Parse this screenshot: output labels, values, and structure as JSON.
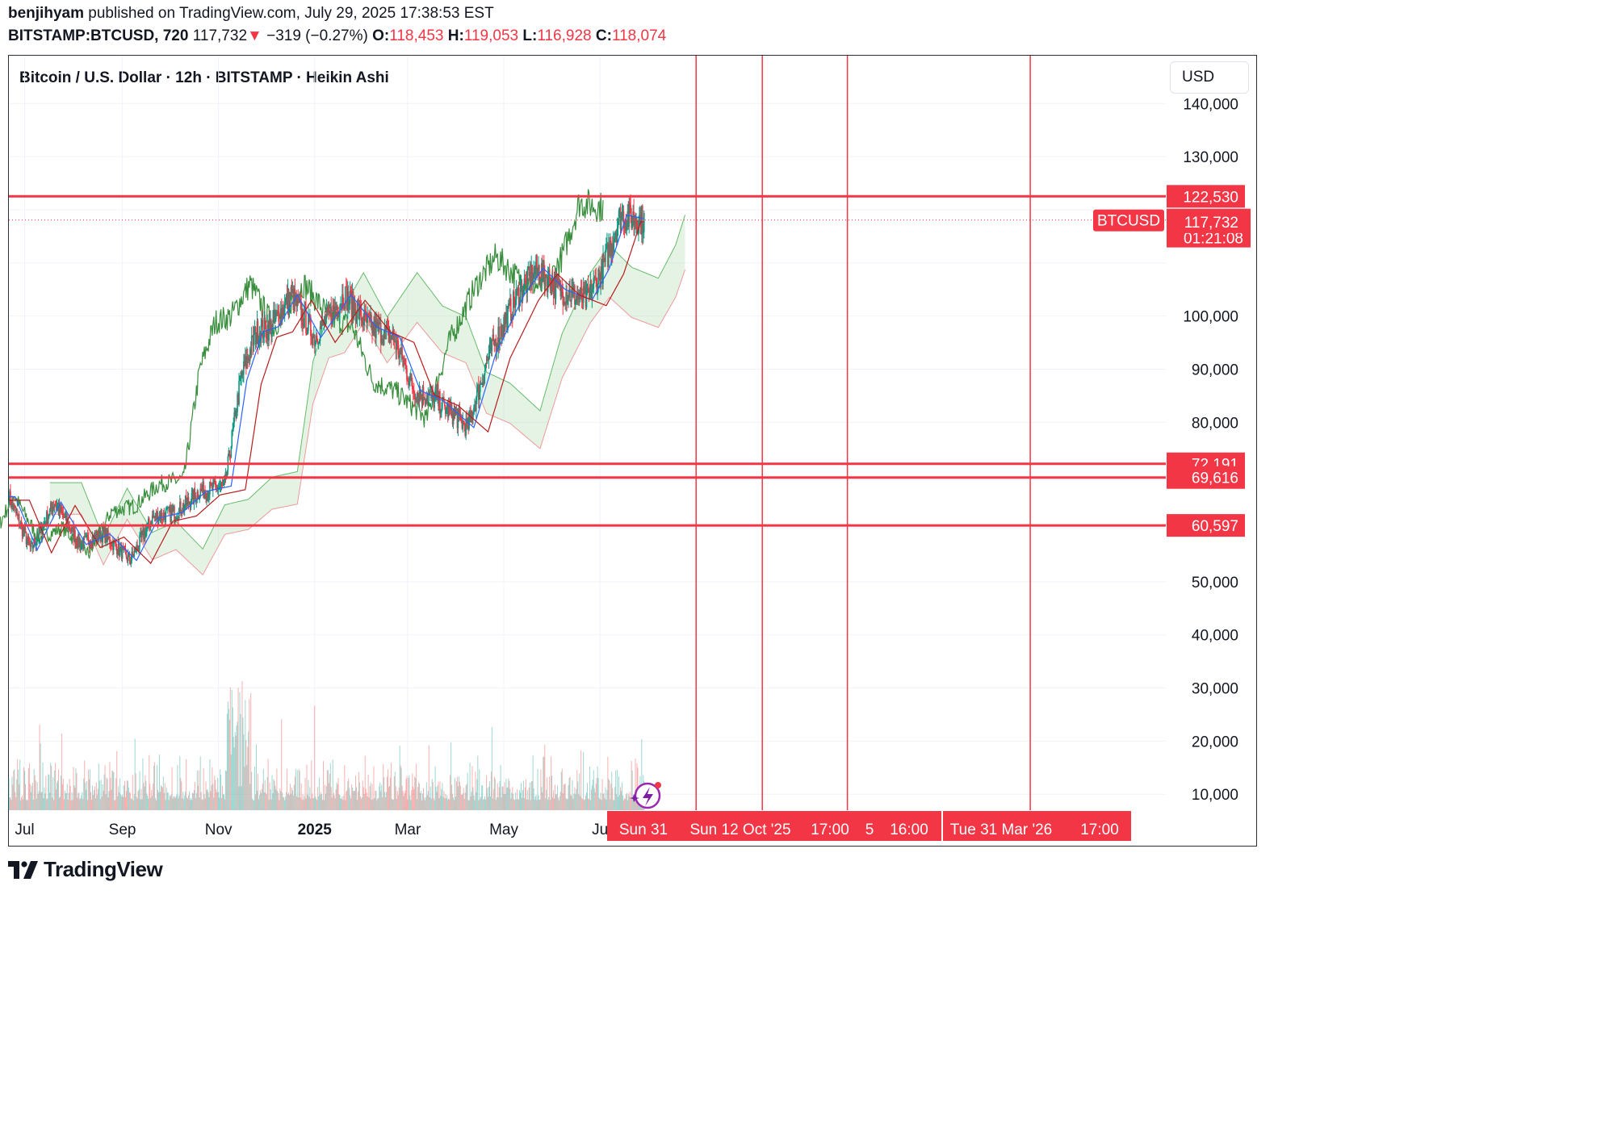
{
  "header": {
    "publisher": "benjihyam",
    "published_text": "published on TradingView.com, July 29, 2025 17:38:53 EST",
    "symbol": "BITSTAMP:BTCUSD, 720",
    "last": "117,732",
    "change": "−319 (−0.27%)",
    "o_label": "O:",
    "o": "118,453",
    "h_label": "H:",
    "h": "119,053",
    "l_label": "L:",
    "l": "116,928",
    "c_label": "C:",
    "c": "118,074",
    "arrow": "▼"
  },
  "chart": {
    "title": "Bitcoin / U.S. Dollar · 12h · BITSTAMP · Heikin Ashi",
    "currency_button": "USD",
    "symbol_tag": "BTCUSD",
    "countdown": "01:21:08",
    "brand": "TradingView",
    "colors": {
      "up": "#089981",
      "down": "#f23645",
      "level": "#f23645",
      "grid": "#f0f3fa",
      "cloud_up": "#a5d6a7",
      "cloud_down": "#faa1a4"
    }
  },
  "chart_data": {
    "type": "line",
    "title": "Bitcoin / U.S. Dollar · 12h · BITSTAMP · Heikin Ashi",
    "y_ticks": [
      10000,
      20000,
      30000,
      40000,
      50000,
      60000,
      70000,
      80000,
      90000,
      100000,
      110000,
      120000,
      130000,
      140000
    ],
    "y_tick_labels": [
      "10,000",
      "20,000",
      "30,000",
      "40,000",
      "50,000",
      "",
      "",
      "80,000",
      "90,000",
      "100,000",
      "",
      "",
      "130,000",
      "140,000"
    ],
    "ylim": [
      7000,
      149000
    ],
    "x_labels": [
      "Jul",
      "Sep",
      "Nov",
      "2025",
      "Mar",
      "May",
      "Ju"
    ],
    "x_label_dates": [
      "2024-07-01",
      "2024-09-01",
      "2024-11-01",
      "2025-01-01",
      "2025-03-01",
      "2025-05-01",
      "2025-07-01"
    ],
    "xlim": [
      "2024-06-21",
      "2026-06-25"
    ],
    "price_series": {
      "name": "BTCUSD",
      "dates": [
        "2024-06-21",
        "2024-07-05",
        "2024-07-20",
        "2024-08-05",
        "2024-08-20",
        "2024-09-06",
        "2024-09-20",
        "2024-10-05",
        "2024-10-20",
        "2024-11-05",
        "2024-11-15",
        "2024-11-25",
        "2024-12-05",
        "2024-12-17",
        "2025-01-01",
        "2025-01-20",
        "2025-02-05",
        "2025-02-20",
        "2025-03-05",
        "2025-03-20",
        "2025-04-08",
        "2025-04-22",
        "2025-05-10",
        "2025-05-22",
        "2025-06-05",
        "2025-06-22",
        "2025-07-03",
        "2025-07-14",
        "2025-07-22",
        "2025-07-29"
      ],
      "values": [
        66000,
        56000,
        65000,
        57000,
        59000,
        54000,
        62000,
        63000,
        67000,
        68000,
        88000,
        97000,
        98000,
        104000,
        96000,
        104000,
        98000,
        96000,
        86000,
        84000,
        79000,
        93000,
        104000,
        109000,
        105000,
        103000,
        109000,
        119000,
        118500,
        118074
      ]
    },
    "volume": {
      "max_value": 41000,
      "note_peaks": [
        "2024-11-12",
        "2024-08-05",
        "2025-07-27"
      ]
    },
    "horizontal_levels": [
      {
        "value": 122530,
        "label": "122,530"
      },
      {
        "value": 72191,
        "label": "72,191"
      },
      {
        "value": 69616,
        "label": "69,616"
      },
      {
        "value": 60597,
        "label": "60,597"
      }
    ],
    "price_labels": [
      {
        "value": 118074,
        "label": "118,074"
      },
      {
        "value": 117732,
        "label": "117,732"
      }
    ],
    "vertical_lines": [
      {
        "date": "2025-08-31",
        "label": "Sun 31"
      },
      {
        "date": "2025-10-12",
        "label": "Sun 12 Oct '25"
      },
      {
        "date": "2025-12-05",
        "label": "5"
      },
      {
        "date": "2026-03-31",
        "label": "Tue 31 Mar '26"
      }
    ],
    "time_tags": [
      "17:00",
      "16:00",
      "17:00"
    ],
    "grid": true
  }
}
